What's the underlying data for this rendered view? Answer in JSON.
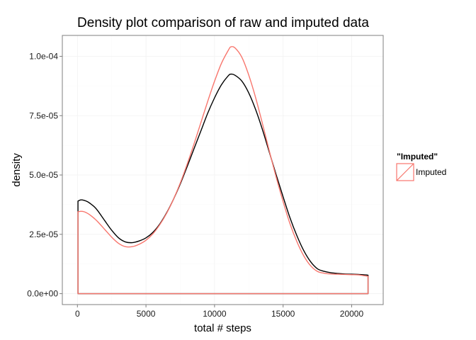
{
  "chart_data": {
    "type": "area",
    "title": "Density plot comparison of raw and imputed data",
    "xlabel": "total # steps",
    "ylabel": "density",
    "xlim": [
      -1100,
      22300
    ],
    "ylim": [
      -4.6e-06,
      0.0001088
    ],
    "x_ticks": [
      0,
      5000,
      10000,
      15000,
      20000
    ],
    "x_tick_labels": [
      "0",
      "5000",
      "10000",
      "15000",
      "20000"
    ],
    "y_ticks": [
      0,
      2.5e-05,
      5e-05,
      7.5e-05,
      0.0001
    ],
    "y_tick_labels": [
      "0.0e+00",
      "2.5e-05",
      "5.0e-05",
      "7.5e-05",
      "1.0e-04"
    ],
    "grid": true,
    "legend_position": "right",
    "legend_title": "\"Imputed\"",
    "legend_entries": [
      {
        "label": "Imputed",
        "color": "#f8766d"
      }
    ],
    "series": [
      {
        "color": "#000000",
        "x": [
          41,
          250,
          500,
          750,
          1000,
          1250,
          1500,
          2000,
          2500,
          3000,
          3500,
          4000,
          4500,
          5000,
          5500,
          6000,
          6500,
          7000,
          7500,
          8000,
          8500,
          9000,
          9500,
          10000,
          10500,
          11000,
          11200,
          11500,
          12000,
          12500,
          13000,
          13500,
          14000,
          14500,
          15000,
          15500,
          16000,
          16500,
          17000,
          17500,
          18000,
          18500,
          19000,
          19500,
          20000,
          20500,
          21000,
          21194
        ],
        "y": [
          3.9e-05,
          3.95e-05,
          3.93e-05,
          3.87e-05,
          3.77e-05,
          3.65e-05,
          3.48e-05,
          3.07e-05,
          2.67e-05,
          2.35e-05,
          2.18e-05,
          2.15e-05,
          2.22e-05,
          2.35e-05,
          2.58e-05,
          2.93e-05,
          3.4e-05,
          3.97e-05,
          4.62e-05,
          5.35e-05,
          6.1e-05,
          6.85e-05,
          7.6e-05,
          8.25e-05,
          8.8e-05,
          9.18e-05,
          9.25e-05,
          9.2e-05,
          8.95e-05,
          8.45e-05,
          7.75e-05,
          6.9e-05,
          5.95e-05,
          5e-05,
          4.08e-05,
          3.2e-05,
          2.45e-05,
          1.82e-05,
          1.35e-05,
          1.05e-05,
          9.4e-06,
          8.8e-06,
          8.5e-06,
          8.3e-06,
          8.2e-06,
          8.1e-06,
          7.9e-06,
          7.8e-06
        ]
      },
      {
        "name": "Imputed",
        "color": "#f8766d",
        "x": [
          41,
          250,
          500,
          750,
          1000,
          1250,
          1500,
          2000,
          2500,
          3000,
          3500,
          4000,
          4500,
          5000,
          5500,
          6000,
          6500,
          7000,
          7500,
          8000,
          8500,
          9000,
          9500,
          10000,
          10500,
          11000,
          11200,
          11500,
          12000,
          12500,
          13000,
          13500,
          14000,
          14500,
          15000,
          15500,
          16000,
          16500,
          17000,
          17500,
          18000,
          18500,
          19000,
          19500,
          20000,
          20500,
          21000,
          21194
        ],
        "y": [
          3.45e-05,
          3.47e-05,
          3.45e-05,
          3.38e-05,
          3.28e-05,
          3.16e-05,
          3.02e-05,
          2.7e-05,
          2.38e-05,
          2.12e-05,
          1.98e-05,
          1.98e-05,
          2.08e-05,
          2.25e-05,
          2.52e-05,
          2.9e-05,
          3.38e-05,
          3.97e-05,
          4.66e-05,
          5.45e-05,
          6.3e-05,
          7.2e-05,
          8.1e-05,
          8.95e-05,
          9.7e-05,
          0.0001025,
          0.000104,
          0.0001035,
          9.95e-05,
          9.2e-05,
          8.25e-05,
          7.15e-05,
          6e-05,
          4.9e-05,
          3.88e-05,
          2.95e-05,
          2.2e-05,
          1.6e-05,
          1.18e-05,
          9.4e-06,
          8.6e-06,
          8.3e-06,
          8.2e-06,
          8.1e-06,
          8e-06,
          7.9e-06,
          7.5e-06,
          7.3e-06
        ]
      }
    ]
  }
}
